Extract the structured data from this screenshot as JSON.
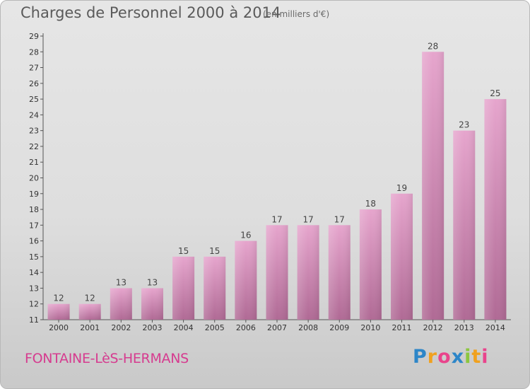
{
  "title": "Charges de Personnel 2000 à 2014",
  "unit": "(en milliers d'€)",
  "place": "FONTAINE-LèS-HERMANS",
  "logo": {
    "p": "P",
    "r": "r",
    "o": "o",
    "x": "x",
    "i": "i",
    "t": "t",
    "i2": "i"
  },
  "colors": {
    "bar_top": "#e6a5cd",
    "bar_bottom": "#b06a95",
    "accent": "#d63b8f"
  },
  "chart_data": {
    "type": "bar",
    "title": "Charges de Personnel 2000 à 2014",
    "categories": [
      "2000",
      "2001",
      "2002",
      "2003",
      "2004",
      "2005",
      "2006",
      "2007",
      "2008",
      "2009",
      "2010",
      "2011",
      "2012",
      "2013",
      "2014"
    ],
    "values": [
      12,
      12,
      13,
      13,
      15,
      15,
      16,
      17,
      17,
      17,
      18,
      19,
      28,
      23,
      25
    ],
    "ylim": [
      11,
      29
    ],
    "yticks": [
      11,
      12,
      13,
      14,
      15,
      16,
      17,
      18,
      19,
      20,
      21,
      22,
      23,
      24,
      25,
      26,
      27,
      28,
      29
    ],
    "grid": false,
    "data_labels": true
  }
}
